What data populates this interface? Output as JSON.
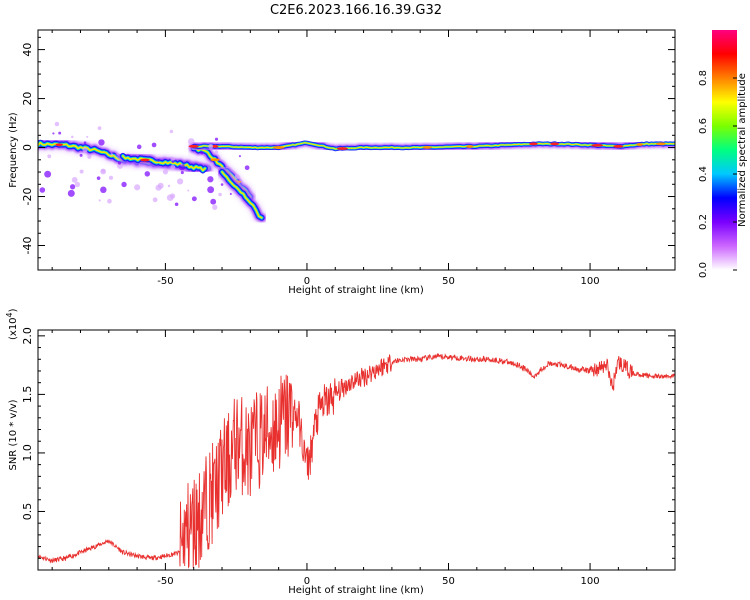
{
  "title": "C2E6.2023.166.16.39.G32",
  "chart_data": [
    {
      "type": "heatmap",
      "xlabel": "Height of straight line (km)",
      "ylabel": "Frequency (Hz)",
      "xlim": [
        -95,
        130
      ],
      "ylim": [
        -50,
        48
      ],
      "x_ticks": [
        -50,
        0,
        50,
        100
      ],
      "y_ticks": [
        -40,
        -20,
        0,
        20,
        40
      ],
      "colorbar": {
        "label": "Normalized spectral amplitude",
        "range": [
          0,
          1
        ],
        "ticks": [
          "0.0",
          "0.2",
          "0.4",
          "0.6",
          "0.8"
        ],
        "colors": [
          "#ffffff",
          "#cc66ff",
          "#7a00ff",
          "#0000ff",
          "#00c8ff",
          "#00ff80",
          "#7cff00",
          "#ffff00",
          "#ff8000",
          "#ff0000",
          "#ff0080"
        ]
      },
      "traces": [
        {
          "x": [
            -95,
            -85,
            -75,
            -70,
            -65,
            -55,
            -45,
            -40,
            -35
          ],
          "y": [
            1.5,
            1,
            -1,
            -3,
            -5,
            -6,
            -7,
            -8,
            -9
          ]
        },
        {
          "x": [
            -65,
            -58,
            -50,
            -44,
            -40,
            -36
          ],
          "y": [
            -4,
            -5,
            -6,
            -7,
            -8,
            -9
          ]
        },
        {
          "x": [
            -40,
            -35,
            -30,
            -25,
            -20
          ],
          "y": [
            0,
            -2,
            -8,
            -14,
            -20
          ]
        },
        {
          "x": [
            -40,
            -30,
            -20,
            -10,
            0,
            10,
            20,
            40,
            60,
            80,
            90,
            100,
            110,
            120,
            130
          ],
          "y": [
            0.5,
            0.5,
            0,
            0,
            2,
            -0.5,
            0,
            0,
            0.5,
            1.5,
            1.5,
            1,
            0.5,
            1.5,
            1.5
          ]
        },
        {
          "x": [
            -30,
            -25,
            -20,
            -18,
            -16
          ],
          "y": [
            -10,
            -16,
            -22,
            -26,
            -29
          ]
        }
      ]
    },
    {
      "type": "line",
      "xlabel": "Height of straight line (km)",
      "ylabel": "SNR (10 * v/v)",
      "y_multiplier": "(x10",
      "y_multiplier_exp": "4",
      "y_multiplier_close": ")",
      "xlim": [
        -95,
        130
      ],
      "ylim": [
        0,
        2.05
      ],
      "x_ticks": [
        -50,
        0,
        50,
        100
      ],
      "y_ticks": [
        "0.5",
        "1.0",
        "1.5",
        "2.0"
      ],
      "color": "#e8302e",
      "series": [
        {
          "x": [
            -95,
            -90,
            -85,
            -80,
            -75,
            -70,
            -65,
            -60,
            -55,
            -50,
            -45,
            -42,
            -40,
            -38,
            -35,
            -32,
            -30,
            -28,
            -25,
            -22,
            -20,
            -18,
            -15,
            -12,
            -10,
            -8,
            -5,
            -3,
            -1,
            0,
            1,
            2,
            3,
            5,
            8,
            10,
            15,
            20,
            25,
            30,
            35,
            40,
            45,
            50,
            55,
            60,
            65,
            70,
            75,
            78,
            80,
            83,
            85,
            90,
            95,
            100,
            103,
            106,
            107,
            108,
            109,
            110,
            113,
            115,
            120,
            125,
            130
          ],
          "y": [
            0.12,
            0.08,
            0.1,
            0.15,
            0.2,
            0.25,
            0.15,
            0.12,
            0.1,
            0.12,
            0.15,
            0.35,
            0.4,
            0.45,
            0.6,
            0.7,
            0.85,
            0.9,
            1.1,
            1.05,
            1.0,
            1.1,
            1.15,
            1.2,
            1.25,
            1.3,
            1.35,
            1.3,
            1.0,
            0.9,
            0.95,
            1.1,
            1.25,
            1.4,
            1.45,
            1.5,
            1.6,
            1.65,
            1.72,
            1.78,
            1.8,
            1.8,
            1.82,
            1.82,
            1.81,
            1.8,
            1.8,
            1.78,
            1.75,
            1.7,
            1.65,
            1.72,
            1.76,
            1.75,
            1.72,
            1.7,
            1.72,
            1.75,
            1.65,
            1.55,
            1.7,
            1.78,
            1.72,
            1.68,
            1.66,
            1.65,
            1.66
          ]
        }
      ]
    }
  ]
}
